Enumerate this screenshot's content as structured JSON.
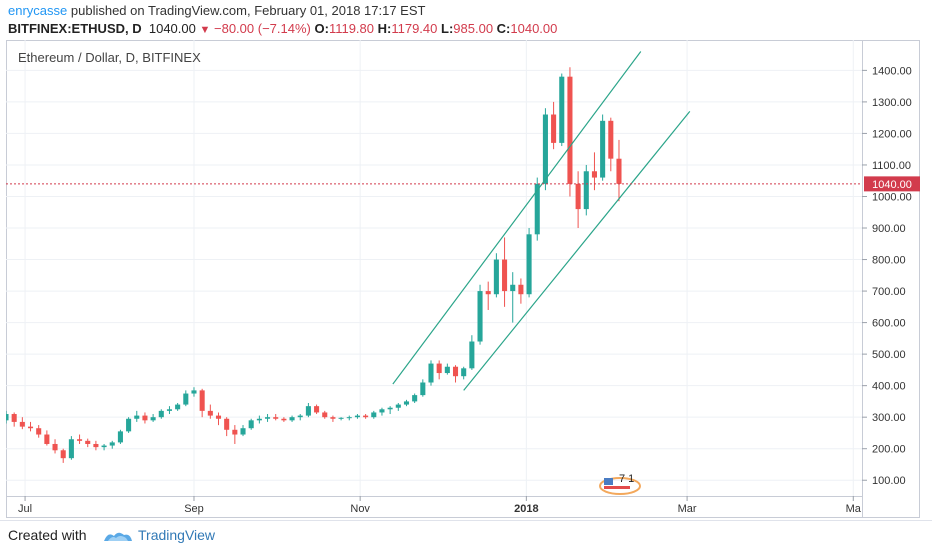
{
  "header": {
    "username": "enrycasse",
    "published_text": "published on TradingView.com, February 01, 2018 17:17 EST",
    "symbol": "BITFINEX:ETHUSD, D",
    "last": "1040.00",
    "change": "−80.00 (−7.14%)",
    "o_label": "O:",
    "o_value": "1119.80",
    "h_label": "H:",
    "h_value": "1179.40",
    "l_label": "L:",
    "l_value": "985.00",
    "c_label": "C:",
    "c_value": "1040.00"
  },
  "chart_title": "Ethereum / Dollar, D, BITFINEX",
  "price_badge": "1040.00",
  "footer": {
    "created_with": "Created with",
    "brand": "TradingView"
  },
  "colors": {
    "up": "#26a69a",
    "down": "#ef5350",
    "channel": "#2ba58a",
    "grid": "#eef1f5",
    "badge": "#d23b4c",
    "accent": "#2196f3"
  },
  "chart_data": {
    "type": "candlestick",
    "title": "Ethereum / Dollar, D, BITFINEX",
    "y_ticks": [
      100,
      200,
      300,
      400,
      500,
      600,
      700,
      800,
      900,
      1000,
      1100,
      1200,
      1300,
      1400
    ],
    "y_tick_labels": [
      "100.00",
      "200.00",
      "300.00",
      "400.00",
      "500.00",
      "600.00",
      "700.00",
      "800.00",
      "900.00",
      "1000.00",
      "1100.00",
      "1200.00",
      "1300.00",
      "1400.00"
    ],
    "ylim": [
      50,
      1490
    ],
    "x_ticks": [
      {
        "label": "Jul",
        "date": "2017-07-01"
      },
      {
        "label": "Sep",
        "date": "2017-09-01"
      },
      {
        "label": "Nov",
        "date": "2017-11-01"
      },
      {
        "label": "2018",
        "date": "2018-01-01",
        "bold": true
      },
      {
        "label": "Mar",
        "date": "2018-03-01"
      },
      {
        "label": "Ma",
        "date": "2018-05-01"
      }
    ],
    "xlim": [
      "2017-06-24",
      "2018-05-02"
    ],
    "last_price": 1040,
    "grid": true,
    "channel_lines": [
      {
        "from": {
          "date": "2017-11-13",
          "price": 405
        },
        "to": {
          "date": "2018-02-12",
          "price": 1460
        }
      },
      {
        "from": {
          "date": "2017-12-09",
          "price": 385
        },
        "to": {
          "date": "2018-03-02",
          "price": 1270
        }
      }
    ],
    "events_badge": "7 1",
    "candles": [
      [
        "2017-06-24",
        290,
        320,
        280,
        310
      ],
      [
        "2017-06-27",
        310,
        315,
        270,
        285
      ],
      [
        "2017-06-30",
        285,
        300,
        262,
        270
      ],
      [
        "2017-07-03",
        270,
        285,
        255,
        265
      ],
      [
        "2017-07-06",
        265,
        275,
        235,
        245
      ],
      [
        "2017-07-09",
        245,
        258,
        210,
        215
      ],
      [
        "2017-07-12",
        215,
        230,
        185,
        195
      ],
      [
        "2017-07-15",
        195,
        200,
        155,
        170
      ],
      [
        "2017-07-18",
        170,
        240,
        165,
        230
      ],
      [
        "2017-07-21",
        230,
        245,
        215,
        225
      ],
      [
        "2017-07-24",
        225,
        232,
        205,
        215
      ],
      [
        "2017-07-27",
        215,
        225,
        195,
        205
      ],
      [
        "2017-07-30",
        205,
        215,
        195,
        210
      ],
      [
        "2017-08-02",
        210,
        225,
        200,
        220
      ],
      [
        "2017-08-05",
        220,
        260,
        215,
        255
      ],
      [
        "2017-08-08",
        255,
        300,
        250,
        295
      ],
      [
        "2017-08-11",
        295,
        320,
        285,
        305
      ],
      [
        "2017-08-14",
        305,
        315,
        280,
        290
      ],
      [
        "2017-08-17",
        290,
        310,
        285,
        300
      ],
      [
        "2017-08-20",
        300,
        325,
        295,
        320
      ],
      [
        "2017-08-23",
        320,
        335,
        310,
        325
      ],
      [
        "2017-08-26",
        325,
        345,
        320,
        340
      ],
      [
        "2017-08-29",
        340,
        385,
        335,
        375
      ],
      [
        "2017-09-01",
        375,
        395,
        365,
        385
      ],
      [
        "2017-09-04",
        385,
        390,
        300,
        320
      ],
      [
        "2017-09-07",
        320,
        340,
        295,
        305
      ],
      [
        "2017-09-10",
        305,
        315,
        275,
        295
      ],
      [
        "2017-09-13",
        295,
        300,
        240,
        260
      ],
      [
        "2017-09-16",
        260,
        275,
        215,
        245
      ],
      [
        "2017-09-19",
        245,
        275,
        240,
        265
      ],
      [
        "2017-09-22",
        265,
        295,
        260,
        290
      ],
      [
        "2017-09-25",
        290,
        305,
        280,
        295
      ],
      [
        "2017-09-28",
        295,
        310,
        285,
        300
      ],
      [
        "2017-10-01",
        300,
        310,
        290,
        295
      ],
      [
        "2017-10-04",
        295,
        300,
        285,
        290
      ],
      [
        "2017-10-07",
        290,
        305,
        285,
        300
      ],
      [
        "2017-10-10",
        300,
        310,
        290,
        305
      ],
      [
        "2017-10-13",
        305,
        345,
        300,
        335
      ],
      [
        "2017-10-16",
        335,
        340,
        310,
        315
      ],
      [
        "2017-10-19",
        315,
        320,
        295,
        300
      ],
      [
        "2017-10-22",
        300,
        305,
        285,
        295
      ],
      [
        "2017-10-25",
        295,
        300,
        290,
        298
      ],
      [
        "2017-10-28",
        298,
        305,
        290,
        300
      ],
      [
        "2017-10-31",
        300,
        310,
        295,
        305
      ],
      [
        "2017-11-03",
        305,
        310,
        295,
        300
      ],
      [
        "2017-11-06",
        300,
        320,
        295,
        315
      ],
      [
        "2017-11-09",
        315,
        330,
        305,
        325
      ],
      [
        "2017-11-12",
        325,
        335,
        310,
        330
      ],
      [
        "2017-11-15",
        330,
        345,
        320,
        340
      ],
      [
        "2017-11-18",
        340,
        355,
        335,
        350
      ],
      [
        "2017-11-21",
        350,
        375,
        345,
        370
      ],
      [
        "2017-11-24",
        370,
        420,
        365,
        410
      ],
      [
        "2017-11-27",
        410,
        480,
        400,
        470
      ],
      [
        "2017-11-30",
        470,
        480,
        420,
        440
      ],
      [
        "2017-12-03",
        440,
        470,
        435,
        460
      ],
      [
        "2017-12-06",
        460,
        465,
        410,
        430
      ],
      [
        "2017-12-09",
        430,
        460,
        420,
        455
      ],
      [
        "2017-12-12",
        455,
        560,
        450,
        540
      ],
      [
        "2017-12-15",
        540,
        720,
        530,
        700
      ],
      [
        "2017-12-18",
        700,
        730,
        640,
        690
      ],
      [
        "2017-12-21",
        690,
        820,
        680,
        800
      ],
      [
        "2017-12-24",
        800,
        870,
        650,
        700
      ],
      [
        "2017-12-27",
        700,
        760,
        600,
        720
      ],
      [
        "2017-12-30",
        720,
        740,
        660,
        690
      ],
      [
        "2018-01-02",
        690,
        900,
        680,
        880
      ],
      [
        "2018-01-05",
        880,
        1060,
        860,
        1040
      ],
      [
        "2018-01-08",
        1040,
        1280,
        1020,
        1260
      ],
      [
        "2018-01-11",
        1260,
        1300,
        1150,
        1170
      ],
      [
        "2018-01-14",
        1170,
        1390,
        1160,
        1380
      ],
      [
        "2018-01-17",
        1380,
        1410,
        1000,
        1040
      ],
      [
        "2018-01-20",
        1040,
        1080,
        900,
        960
      ],
      [
        "2018-01-23",
        960,
        1100,
        940,
        1080
      ],
      [
        "2018-01-26",
        1080,
        1140,
        1020,
        1060
      ],
      [
        "2018-01-29",
        1060,
        1260,
        1050,
        1240
      ],
      [
        "2018-02-01",
        1240,
        1250,
        1080,
        1120
      ],
      [
        "2018-02-04",
        1119.8,
        1179.4,
        985,
        1040
      ]
    ]
  }
}
